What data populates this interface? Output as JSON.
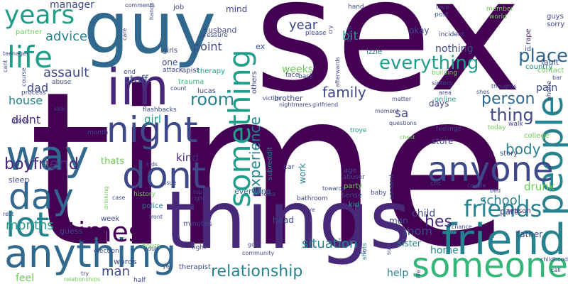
{
  "colors": {
    "purple": "#440154",
    "violet": "#482878",
    "indigo": "#3e4989",
    "blue": "#31688e",
    "teal": "#26828e",
    "green": "#1f9e89",
    "mint": "#35b779",
    "lime": "#6ece58",
    "yellow": "#b5de2b"
  },
  "words": [
    "time",
    "sex",
    "things",
    "guy",
    "im",
    "friend",
    "anything",
    "people",
    "way",
    "anyone",
    "someone",
    "night",
    "dont",
    "day",
    "lot",
    "life",
    "years",
    "something",
    "times",
    "friends",
    "everything",
    "relationship",
    "place",
    "room",
    "family",
    "assault",
    "person",
    "thing",
    "body",
    "boyfriend",
    "months",
    "situation",
    "school",
    "hes",
    "manager",
    "advice",
    "year",
    "point",
    "kind",
    "girl",
    "experience",
    "guess",
    "stuff",
    "mind",
    "husband",
    "therapy",
    "dad",
    "house",
    "bit",
    "nothing",
    "pain",
    "fault",
    "contact",
    "country",
    "sa",
    "store",
    "drunk",
    "part",
    "reason",
    "mom",
    "child",
    "home",
    "help",
    "man",
    "feel",
    "police",
    "week",
    "words",
    "weeks",
    "didnt",
    "thats",
    "everyone",
    "work",
    "sister",
    "men",
    "kid",
    "head",
    "days",
    "online",
    "brother",
    "lucas",
    "trauma",
    "rapist",
    "girls",
    "partner",
    "job",
    "okay",
    "izzie",
    "guys",
    "sorry",
    "rape",
    "id",
    "story",
    "father",
    "minutes",
    "hours",
    "fight",
    "feelings",
    "shots",
    "ex",
    "others",
    "age",
    "car",
    "party",
    "abuser",
    "college",
    "sleep",
    "sense",
    "bathroom",
    "therapist",
    "history",
    "month",
    "flashbacks",
    "subreddit",
    "election",
    "idea",
    "baby",
    "troye",
    "cnc",
    "consent",
    "abuse",
    "process",
    "move",
    "adult",
    "end",
    "attack",
    "one",
    "pressure",
    "please",
    "face",
    "back",
    "hand",
    "love",
    "member",
    "post",
    "incident",
    "building",
    "sisters",
    "today",
    "world",
    "bar",
    "phone",
    "thoughts",
    "shes",
    "area",
    "walk",
    "moment",
    "questions",
    "matter",
    "victim",
    "nightmares",
    "girlfriend",
    "chest",
    "count",
    "hands",
    "cant",
    "teenager",
    "course",
    "care",
    "comments",
    "touch",
    "afterwards",
    "cry",
    "sick",
    "kids",
    "issue",
    "top",
    "right",
    "ive",
    "chance",
    "towards",
    "god",
    "community",
    "ass",
    "half",
    "try",
    "relationships",
    "sure",
    "yes",
    "rest",
    "front",
    "case",
    "drinking",
    "couple",
    "bed",
    "call",
    "childhood",
    "life",
    "room",
    "shit",
    "mother",
    "truth",
    "gift",
    "reddit",
    "door",
    "yeah",
    "body",
    "friend"
  ]
}
